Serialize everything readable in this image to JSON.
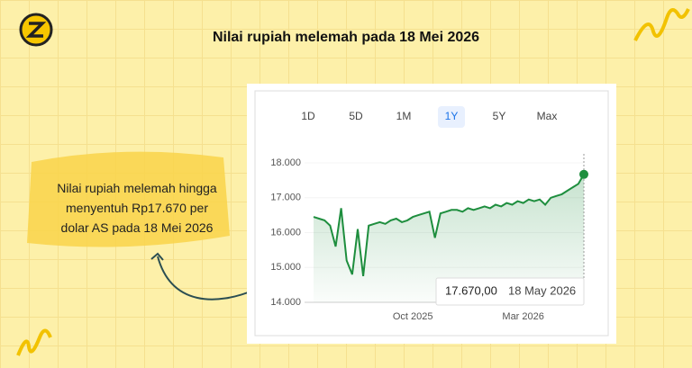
{
  "header": {
    "title": "Nilai rupiah melemah pada 18 Mei 2026"
  },
  "callout": {
    "lines": [
      "Nilai rupiah melemah hingga",
      "menyentuh Rp17.670 per",
      "dolar AS pada 18 Mei 2026"
    ]
  },
  "chart_data": {
    "type": "line",
    "ranges": [
      "1D",
      "5D",
      "1M",
      "1Y",
      "5Y",
      "Max"
    ],
    "categories": [
      null,
      null,
      null,
      null,
      null,
      null,
      null,
      null,
      null,
      null,
      null,
      null,
      null,
      null,
      null,
      null,
      null,
      null,
      "Oct 2025",
      null,
      null,
      null,
      null,
      null,
      null,
      null,
      null,
      null,
      null,
      null,
      null,
      null,
      null,
      null,
      null,
      null,
      null,
      null,
      "Mar 2026",
      null,
      null,
      null,
      null,
      null,
      null,
      null,
      null,
      null,
      null,
      null
    ],
    "values": [
      16450,
      16400,
      16350,
      16200,
      15600,
      16700,
      15200,
      14800,
      16100,
      14750,
      16200,
      16250,
      16300,
      16250,
      16350,
      16400,
      16300,
      16350,
      16450,
      16500,
      16550,
      16600,
      15850,
      16550,
      16600,
      16650,
      16650,
      16600,
      16700,
      16650,
      16700,
      16750,
      16700,
      16800,
      16750,
      16850,
      16800,
      16900,
      16850,
      16950,
      16900,
      16950,
      16800,
      17000,
      17050,
      17100,
      17200,
      17300,
      17400,
      17670
    ],
    "color": "#1e8e3e",
    "ylim": [
      14000,
      18000
    ],
    "yticks": [
      {
        "value": 14000,
        "label": "14.000"
      },
      {
        "value": 15000,
        "label": "15.000"
      },
      {
        "value": 16000,
        "label": "16.000"
      },
      {
        "value": 17000,
        "label": "17.000"
      },
      {
        "value": 18000,
        "label": "18.000"
      }
    ],
    "grid": true,
    "tooltip": {
      "value": 17670,
      "label": "17.670,00",
      "date": "18 May 2026"
    }
  }
}
